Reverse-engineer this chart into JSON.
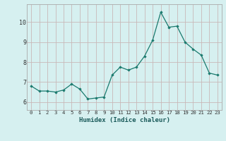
{
  "x": [
    0,
    1,
    2,
    3,
    4,
    5,
    6,
    7,
    8,
    9,
    10,
    11,
    12,
    13,
    14,
    15,
    16,
    17,
    18,
    19,
    20,
    21,
    22,
    23
  ],
  "y": [
    6.8,
    6.55,
    6.55,
    6.5,
    6.6,
    6.9,
    6.65,
    6.15,
    6.2,
    6.25,
    7.35,
    7.75,
    7.6,
    7.75,
    8.3,
    9.1,
    10.5,
    9.75,
    9.8,
    9.0,
    8.65,
    8.35,
    7.45,
    7.35
  ],
  "line_color": "#1a7a6e",
  "marker_color": "#1a7a6e",
  "bg_color": "#d6f0f0",
  "grid_color_major": "#c0d8d8",
  "grid_color_minor": "#e0f4f4",
  "xlabel": "Humidex (Indice chaleur)",
  "ylabel_ticks": [
    6,
    7,
    8,
    9,
    10
  ],
  "xlim": [
    -0.5,
    23.5
  ],
  "ylim": [
    5.6,
    10.9
  ],
  "xticks": [
    0,
    1,
    2,
    3,
    4,
    5,
    6,
    7,
    8,
    9,
    10,
    11,
    12,
    13,
    14,
    15,
    16,
    17,
    18,
    19,
    20,
    21,
    22,
    23
  ]
}
